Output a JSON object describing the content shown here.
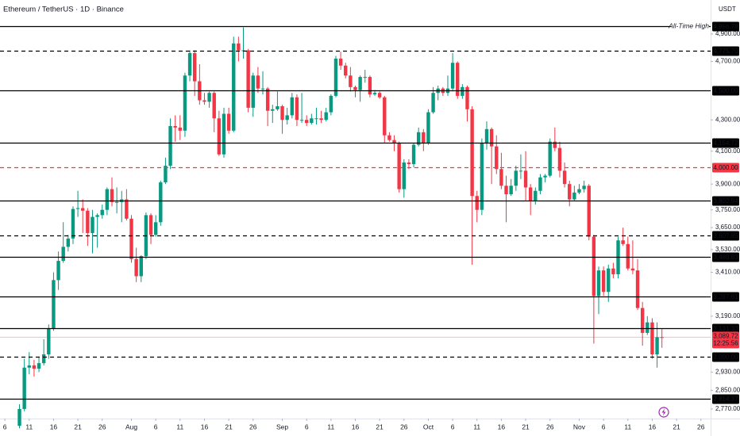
{
  "chart_data": {
    "type": "candlestick",
    "title": "Ethereum / TetherUS · 1D · Binance",
    "currency": "USDT",
    "log_scale": true,
    "up_color": "#089981",
    "down_color": "#f23645",
    "xlim": [
      "07-05",
      "11-28"
    ],
    "ylim": [
      2730,
      5160
    ],
    "x": [
      "07-09",
      "07-10",
      "07-11",
      "07-12",
      "07-13",
      "07-14",
      "07-15",
      "07-16",
      "07-17",
      "07-18",
      "07-19",
      "07-20",
      "07-21",
      "07-22",
      "07-23",
      "07-24",
      "07-25",
      "07-26",
      "07-27",
      "07-28",
      "07-29",
      "07-30",
      "07-31",
      "08-01",
      "08-02",
      "08-03",
      "08-04",
      "08-05",
      "08-06",
      "08-07",
      "08-08",
      "08-09",
      "08-10",
      "08-11",
      "08-12",
      "08-13",
      "08-14",
      "08-15",
      "08-16",
      "08-17",
      "08-18",
      "08-19",
      "08-20",
      "08-21",
      "08-22",
      "08-23",
      "08-24",
      "08-25",
      "08-26",
      "08-27",
      "08-28",
      "08-29",
      "08-30",
      "08-31",
      "09-01",
      "09-02",
      "09-03",
      "09-04",
      "09-05",
      "09-06",
      "09-07",
      "09-08",
      "09-09",
      "09-10",
      "09-11",
      "09-12",
      "09-13",
      "09-14",
      "09-15",
      "09-16",
      "09-17",
      "09-18",
      "09-19",
      "09-20",
      "09-21",
      "09-22",
      "09-23",
      "09-24",
      "09-25",
      "09-26",
      "09-27",
      "09-28",
      "09-29",
      "09-30",
      "10-01",
      "10-02",
      "10-03",
      "10-04",
      "10-05",
      "10-06",
      "10-07",
      "10-08",
      "10-09",
      "10-10",
      "10-11",
      "10-12",
      "10-13",
      "10-14",
      "10-15",
      "10-16",
      "10-17",
      "10-18",
      "10-19",
      "10-20",
      "10-21",
      "10-22",
      "10-23",
      "10-24",
      "10-25",
      "10-26",
      "10-27",
      "10-28",
      "10-29",
      "10-30",
      "10-31",
      "11-01",
      "11-02",
      "11-03",
      "11-04",
      "11-05",
      "11-06",
      "11-07",
      "11-08",
      "11-09",
      "11-10",
      "11-11",
      "11-12",
      "11-13",
      "11-14",
      "11-15",
      "11-16",
      "11-17",
      "11-18"
    ],
    "open": [
      2700,
      2770,
      2950,
      2960,
      2945,
      2970,
      3010,
      3130,
      3370,
      3470,
      3545,
      3590,
      3755,
      3760,
      3745,
      3620,
      3710,
      3720,
      3750,
      3870,
      3795,
      3795,
      3810,
      3700,
      3480,
      3390,
      3495,
      3720,
      3610,
      3680,
      3910,
      4010,
      4260,
      4250,
      4230,
      4600,
      4760,
      4560,
      4430,
      4420,
      4480,
      4310,
      4080,
      4340,
      4230,
      4830,
      4780,
      4780,
      4380,
      4600,
      4510,
      4510,
      4360,
      4370,
      4390,
      4300,
      4330,
      4450,
      4300,
      4300,
      4280,
      4310,
      4310,
      4300,
      4350,
      4460,
      4720,
      4670,
      4600,
      4520,
      4500,
      4590,
      4590,
      4470,
      4480,
      4450,
      4200,
      4170,
      4150,
      3870,
      4030,
      4020,
      4140,
      4220,
      4150,
      4350,
      4480,
      4510,
      4480,
      4510,
      4690,
      4460,
      4520,
      4370,
      3830,
      3750,
      4150,
      4240,
      4130,
      3990,
      3890,
      3840,
      3890,
      3980,
      3980,
      3880,
      3800,
      3860,
      3940,
      3950,
      4160,
      4120,
      3980,
      3900,
      3810,
      3850,
      3870,
      3890,
      3600,
      3290,
      3420,
      3310,
      3430,
      3400,
      3580,
      3560,
      3430,
      3420,
      3230,
      3110,
      3160,
      3010,
      3090
    ],
    "high": [
      2790,
      2990,
      3020,
      2985,
      3000,
      3080,
      3150,
      3410,
      3520,
      3680,
      3610,
      3770,
      3860,
      3810,
      3760,
      3750,
      3730,
      3780,
      3880,
      3940,
      3880,
      3860,
      3870,
      3720,
      3540,
      3500,
      3735,
      3730,
      3720,
      3920,
      4060,
      4310,
      4330,
      4330,
      4620,
      4780,
      4780,
      4680,
      4480,
      4490,
      4490,
      4360,
      4380,
      4380,
      4880,
      4880,
      4950,
      4790,
      4620,
      4660,
      4630,
      4520,
      4400,
      4490,
      4400,
      4380,
      4480,
      4470,
      4480,
      4330,
      4340,
      4380,
      4360,
      4380,
      4470,
      4740,
      4770,
      4690,
      4660,
      4530,
      4600,
      4640,
      4600,
      4500,
      4490,
      4460,
      4220,
      4200,
      4160,
      4050,
      4050,
      4150,
      4250,
      4240,
      4370,
      4520,
      4530,
      4520,
      4600,
      4760,
      4700,
      4540,
      4530,
      4390,
      3860,
      4180,
      4290,
      4250,
      4200,
      4090,
      3950,
      3930,
      4010,
      4080,
      4100,
      3900,
      3880,
      3960,
      3960,
      4180,
      4250,
      4160,
      4030,
      3920,
      3890,
      3900,
      3920,
      3900,
      3610,
      3440,
      3440,
      3450,
      3460,
      3600,
      3650,
      3600,
      3580,
      3480,
      3260,
      3190,
      3180,
      3160,
      3130
    ],
    "low": [
      2690,
      2760,
      2920,
      2910,
      2930,
      2960,
      2990,
      3120,
      3320,
      3460,
      3520,
      3560,
      3710,
      3620,
      3550,
      3510,
      3540,
      3700,
      3720,
      3770,
      3730,
      3680,
      3690,
      3460,
      3360,
      3360,
      3480,
      3560,
      3600,
      3660,
      3900,
      3990,
      4160,
      4170,
      4190,
      4560,
      4460,
      4400,
      4400,
      4380,
      4220,
      4070,
      4060,
      4210,
      4220,
      4700,
      4720,
      4350,
      4320,
      4480,
      4470,
      4260,
      4280,
      4360,
      4210,
      4270,
      4310,
      4260,
      4280,
      4260,
      4270,
      4270,
      4280,
      4290,
      4330,
      4450,
      4640,
      4580,
      4490,
      4450,
      4420,
      4550,
      4450,
      4460,
      4440,
      4150,
      4160,
      4100,
      3850,
      3820,
      3990,
      4000,
      4130,
      4100,
      4140,
      4340,
      4430,
      4460,
      4460,
      4490,
      4440,
      4440,
      4290,
      3450,
      3680,
      3720,
      4110,
      3900,
      3960,
      3870,
      3680,
      3830,
      3860,
      3930,
      3800,
      3720,
      3780,
      3840,
      3910,
      3940,
      4100,
      3940,
      3880,
      3770,
      3800,
      3840,
      3850,
      3580,
      3060,
      3200,
      3290,
      3260,
      3380,
      3380,
      3550,
      3420,
      3400,
      3220,
      3050,
      3100,
      2990,
      2950,
      3040
    ],
    "close": [
      2770,
      2950,
      2960,
      2945,
      2970,
      3010,
      3130,
      3370,
      3470,
      3545,
      3590,
      3755,
      3760,
      3745,
      3620,
      3710,
      3720,
      3750,
      3870,
      3795,
      3795,
      3810,
      3700,
      3480,
      3390,
      3495,
      3720,
      3610,
      3680,
      3910,
      4010,
      4260,
      4250,
      4230,
      4600,
      4760,
      4560,
      4430,
      4420,
      4480,
      4310,
      4080,
      4340,
      4230,
      4830,
      4780,
      4780,
      4380,
      4600,
      4510,
      4510,
      4360,
      4370,
      4390,
      4300,
      4330,
      4450,
      4300,
      4300,
      4280,
      4310,
      4310,
      4300,
      4350,
      4460,
      4720,
      4670,
      4600,
      4520,
      4500,
      4590,
      4590,
      4470,
      4480,
      4450,
      4200,
      4170,
      4150,
      3870,
      4030,
      4020,
      4140,
      4220,
      4150,
      4350,
      4480,
      4510,
      4480,
      4510,
      4690,
      4460,
      4520,
      4370,
      3830,
      3750,
      4150,
      4240,
      4130,
      3990,
      3890,
      3840,
      3890,
      3980,
      3980,
      3880,
      3800,
      3860,
      3940,
      3950,
      4160,
      4120,
      3980,
      3900,
      3810,
      3850,
      3870,
      3890,
      3600,
      3290,
      3420,
      3310,
      3430,
      3400,
      3580,
      3560,
      3430,
      3420,
      3230,
      3110,
      3160,
      3010,
      3090,
      3089.72
    ],
    "xticks": [
      {
        "value": "07-06",
        "label": "6"
      },
      {
        "value": "07-11",
        "label": "11"
      },
      {
        "value": "07-16",
        "label": "16"
      },
      {
        "value": "07-21",
        "label": "21"
      },
      {
        "value": "07-26",
        "label": "26"
      },
      {
        "value": "08-01",
        "label": "Aug"
      },
      {
        "value": "08-06",
        "label": "6"
      },
      {
        "value": "08-11",
        "label": "11"
      },
      {
        "value": "08-16",
        "label": "16"
      },
      {
        "value": "08-21",
        "label": "21"
      },
      {
        "value": "08-26",
        "label": "26"
      },
      {
        "value": "09-01",
        "label": "Sep"
      },
      {
        "value": "09-06",
        "label": "6"
      },
      {
        "value": "09-11",
        "label": "11"
      },
      {
        "value": "09-16",
        "label": "16"
      },
      {
        "value": "09-21",
        "label": "21"
      },
      {
        "value": "09-26",
        "label": "26"
      },
      {
        "value": "10-01",
        "label": "Oct"
      },
      {
        "value": "10-06",
        "label": "6"
      },
      {
        "value": "10-11",
        "label": "11"
      },
      {
        "value": "10-16",
        "label": "16"
      },
      {
        "value": "10-21",
        "label": "21"
      },
      {
        "value": "10-26",
        "label": "26"
      },
      {
        "value": "11-01",
        "label": "Nov"
      },
      {
        "value": "11-06",
        "label": "6"
      },
      {
        "value": "11-11",
        "label": "11"
      },
      {
        "value": "11-16",
        "label": "16"
      },
      {
        "value": "11-21",
        "label": "21"
      },
      {
        "value": "11-26",
        "label": "26"
      }
    ],
    "yticks": [
      {
        "value": 4900,
        "label": "4,900.00"
      },
      {
        "value": 4700,
        "label": "4,700.00"
      },
      {
        "value": 4300,
        "label": "4,300.00"
      },
      {
        "value": 4100,
        "label": "4,100.00"
      },
      {
        "value": 3900,
        "label": "3,900.00"
      },
      {
        "value": 3750,
        "label": "3,750.00"
      },
      {
        "value": 3650,
        "label": "3,650.00"
      },
      {
        "value": 3530,
        "label": "3,530.00"
      },
      {
        "value": 3410,
        "label": "3,410.00"
      },
      {
        "value": 3190,
        "label": "3,190.00"
      },
      {
        "value": 2930,
        "label": "2,930.00"
      },
      {
        "value": 2850,
        "label": "2,850.00"
      },
      {
        "value": 2770,
        "label": "2,770.00"
      }
    ],
    "levels": [
      {
        "value": 4956.78,
        "label": "4,956.78",
        "style": "solid",
        "color": "#000000"
      },
      {
        "value": 4775.7,
        "label": "4,775.70",
        "style": "dashed",
        "color": "#000000"
      },
      {
        "value": 4500,
        "label": "4,500.00",
        "style": "solid",
        "color": "#000000"
      },
      {
        "value": 4154.72,
        "label": "4,154.72",
        "style": "solid",
        "color": "#000000"
      },
      {
        "value": 4000,
        "label": "4,000.00",
        "style": "dashed",
        "color": "#f23645"
      },
      {
        "value": 3802.94,
        "label": "3,802.94",
        "style": "solid",
        "color": "#000000"
      },
      {
        "value": 3607.85,
        "label": "3,607.85",
        "style": "dashed",
        "color": "#000000"
      },
      {
        "value": 3489.83,
        "label": "3,489.83",
        "style": "solid",
        "color": "#000000"
      },
      {
        "value": 3287.61,
        "label": "3,287.61",
        "style": "solid",
        "color": "#000000"
      },
      {
        "value": 3131.33,
        "label": "3,131.33",
        "style": "solid",
        "color": "#000000"
      },
      {
        "value": 3000,
        "label": "3,000.00",
        "style": "dashed",
        "color": "#000000"
      },
      {
        "value": 2814.37,
        "label": "2,814.37",
        "style": "solid",
        "color": "#000000"
      }
    ],
    "annotation": {
      "text": "All-Time High",
      "value": 4956.78
    },
    "last_price": {
      "value": 3089.72,
      "label": "3,089.72",
      "countdown": "12:25:56"
    }
  }
}
